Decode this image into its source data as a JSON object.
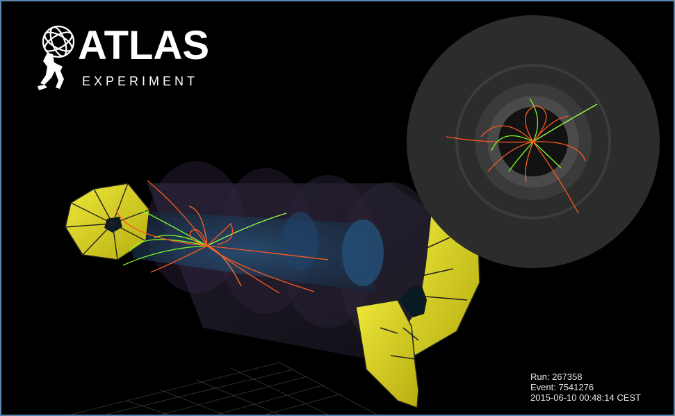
{
  "logo": {
    "word": "ATLAS",
    "sub": "EXPERIMENT"
  },
  "event_info": {
    "run": "Run: 267358",
    "event": "Event: 7541276",
    "datetime": "2015-06-10 00:48:14 CEST"
  },
  "colors": {
    "frame_border": "#5a86b0",
    "endcap_yellow": "#d7d01c",
    "track_green": "#7dff2a",
    "track_orange": "#ff5a1f",
    "barrel_blue": "#1f3a5a",
    "endview_grey": "#2e2e2e"
  },
  "icons": {
    "logo_mark": "atlas-globe-figure-icon"
  }
}
